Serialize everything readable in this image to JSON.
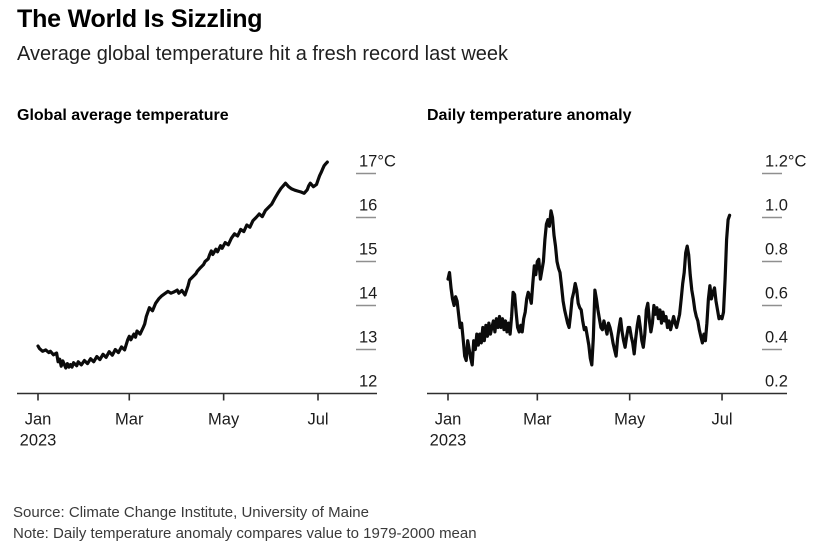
{
  "header": {
    "title": "The World Is Sizzling",
    "subtitle": "Average global temperature hit a fresh record last week"
  },
  "footer": {
    "source": "Source: Climate Change Institute, University of Maine",
    "note": "Note: Daily temperature anomaly compares value to 1979-2000 mean"
  },
  "colors": {
    "line": "#0b0b0b",
    "axis": "#2e2e2e",
    "y_tick": "#8f8f8f",
    "background": "#ffffff"
  },
  "chart_data": [
    {
      "type": "line",
      "title": "Global average temperature",
      "unit": "°C",
      "x_axis_year": "2023",
      "x_tick_days": [
        0,
        59,
        120,
        181
      ],
      "x_tick_labels": [
        "Jan",
        "Mar",
        "May",
        "Jul"
      ],
      "y_tick_values": [
        17,
        16,
        15,
        14,
        13,
        12
      ],
      "y_tick_labels": [
        "17°C",
        "16",
        "15",
        "14",
        "13",
        "12"
      ],
      "ylim": [
        12,
        17.4
      ],
      "x_range_days": [
        0,
        187
      ],
      "points": [
        [
          0,
          13.08
        ],
        [
          1,
          13.02
        ],
        [
          3,
          12.96
        ],
        [
          5,
          12.99
        ],
        [
          7,
          12.93
        ],
        [
          8,
          12.96
        ],
        [
          10,
          12.88
        ],
        [
          12,
          12.92
        ],
        [
          13,
          12.72
        ],
        [
          14,
          12.78
        ],
        [
          15,
          12.62
        ],
        [
          16,
          12.74
        ],
        [
          18,
          12.58
        ],
        [
          19,
          12.68
        ],
        [
          20,
          12.6
        ],
        [
          21,
          12.66
        ],
        [
          22,
          12.6
        ],
        [
          23,
          12.7
        ],
        [
          25,
          12.63
        ],
        [
          26,
          12.72
        ],
        [
          28,
          12.65
        ],
        [
          30,
          12.75
        ],
        [
          32,
          12.68
        ],
        [
          34,
          12.79
        ],
        [
          36,
          12.72
        ],
        [
          38,
          12.84
        ],
        [
          40,
          12.77
        ],
        [
          42,
          12.89
        ],
        [
          44,
          12.82
        ],
        [
          46,
          12.95
        ],
        [
          48,
          12.87
        ],
        [
          50,
          13.0
        ],
        [
          52,
          12.93
        ],
        [
          54,
          13.06
        ],
        [
          56,
          12.99
        ],
        [
          58,
          13.22
        ],
        [
          59,
          13.3
        ],
        [
          60,
          13.22
        ],
        [
          62,
          13.35
        ],
        [
          63,
          13.28
        ],
        [
          64,
          13.42
        ],
        [
          66,
          13.35
        ],
        [
          68,
          13.5
        ],
        [
          69,
          13.58
        ],
        [
          70,
          13.75
        ],
        [
          72,
          13.95
        ],
        [
          74,
          13.88
        ],
        [
          76,
          14.05
        ],
        [
          78,
          14.15
        ],
        [
          80,
          14.22
        ],
        [
          82,
          14.27
        ],
        [
          84,
          14.32
        ],
        [
          86,
          14.28
        ],
        [
          88,
          14.31
        ],
        [
          90,
          14.35
        ],
        [
          91,
          14.28
        ],
        [
          93,
          14.34
        ],
        [
          95,
          14.24
        ],
        [
          97,
          14.45
        ],
        [
          98,
          14.58
        ],
        [
          100,
          14.65
        ],
        [
          102,
          14.72
        ],
        [
          103,
          14.78
        ],
        [
          105,
          14.86
        ],
        [
          107,
          14.93
        ],
        [
          108,
          15.0
        ],
        [
          110,
          15.06
        ],
        [
          111,
          15.16
        ],
        [
          112,
          15.24
        ],
        [
          113,
          15.16
        ],
        [
          115,
          15.28
        ],
        [
          116,
          15.22
        ],
        [
          118,
          15.36
        ],
        [
          119,
          15.3
        ],
        [
          121,
          15.43
        ],
        [
          123,
          15.38
        ],
        [
          125,
          15.53
        ],
        [
          127,
          15.63
        ],
        [
          129,
          15.58
        ],
        [
          131,
          15.73
        ],
        [
          133,
          15.68
        ],
        [
          135,
          15.83
        ],
        [
          137,
          15.78
        ],
        [
          139,
          15.93
        ],
        [
          141,
          16.0
        ],
        [
          143,
          16.08
        ],
        [
          145,
          16.02
        ],
        [
          147,
          16.16
        ],
        [
          149,
          16.23
        ],
        [
          151,
          16.3
        ],
        [
          153,
          16.43
        ],
        [
          155,
          16.55
        ],
        [
          157,
          16.66
        ],
        [
          159,
          16.74
        ],
        [
          160,
          16.78
        ],
        [
          162,
          16.7
        ],
        [
          164,
          16.65
        ],
        [
          166,
          16.62
        ],
        [
          168,
          16.6
        ],
        [
          170,
          16.58
        ],
        [
          172,
          16.55
        ],
        [
          174,
          16.63
        ],
        [
          175,
          16.72
        ],
        [
          176,
          16.78
        ],
        [
          178,
          16.7
        ],
        [
          180,
          16.75
        ],
        [
          181,
          16.85
        ],
        [
          182,
          16.95
        ],
        [
          183,
          17.02
        ],
        [
          184,
          17.1
        ],
        [
          185,
          17.18
        ],
        [
          186,
          17.22
        ],
        [
          187,
          17.26
        ]
      ]
    },
    {
      "type": "line",
      "title": "Daily temperature anomaly",
      "unit": "°C",
      "x_axis_year": "2023",
      "x_tick_days": [
        0,
        59,
        120,
        181
      ],
      "x_tick_labels": [
        "Jan",
        "Mar",
        "May",
        "Jul"
      ],
      "y_tick_values": [
        1.2,
        1.0,
        0.8,
        0.6,
        0.4,
        0.2
      ],
      "y_tick_labels": [
        "1.2°C",
        "1.0",
        "0.8",
        "0.6",
        "0.4",
        "0.2"
      ],
      "ylim": [
        0.2,
        1.2
      ],
      "x_range_days": [
        0,
        186
      ],
      "points": [
        [
          0,
          0.72
        ],
        [
          1,
          0.75
        ],
        [
          2,
          0.68
        ],
        [
          3,
          0.63
        ],
        [
          4,
          0.6
        ],
        [
          5,
          0.64
        ],
        [
          6,
          0.62
        ],
        [
          7,
          0.56
        ],
        [
          8,
          0.5
        ],
        [
          9,
          0.52
        ],
        [
          10,
          0.45
        ],
        [
          11,
          0.37
        ],
        [
          12,
          0.35
        ],
        [
          13,
          0.44
        ],
        [
          14,
          0.4
        ],
        [
          15,
          0.36
        ],
        [
          16,
          0.33
        ],
        [
          17,
          0.44
        ],
        [
          18,
          0.4
        ],
        [
          19,
          0.47
        ],
        [
          20,
          0.42
        ],
        [
          21,
          0.47
        ],
        [
          22,
          0.43
        ],
        [
          23,
          0.5
        ],
        [
          24,
          0.44
        ],
        [
          25,
          0.51
        ],
        [
          26,
          0.46
        ],
        [
          27,
          0.52
        ],
        [
          28,
          0.47
        ],
        [
          30,
          0.53
        ],
        [
          31,
          0.48
        ],
        [
          32,
          0.54
        ],
        [
          33,
          0.5
        ],
        [
          34,
          0.55
        ],
        [
          35,
          0.5
        ],
        [
          36,
          0.54
        ],
        [
          37,
          0.49
        ],
        [
          38,
          0.53
        ],
        [
          39,
          0.48
        ],
        [
          40,
          0.52
        ],
        [
          41,
          0.47
        ],
        [
          42,
          0.55
        ],
        [
          43,
          0.66
        ],
        [
          44,
          0.65
        ],
        [
          45,
          0.57
        ],
        [
          46,
          0.5
        ],
        [
          47,
          0.48
        ],
        [
          48,
          0.51
        ],
        [
          49,
          0.48
        ],
        [
          50,
          0.54
        ],
        [
          51,
          0.57
        ],
        [
          52,
          0.63
        ],
        [
          53,
          0.66
        ],
        [
          54,
          0.64
        ],
        [
          55,
          0.61
        ],
        [
          56,
          0.7
        ],
        [
          57,
          0.78
        ],
        [
          58,
          0.74
        ],
        [
          59,
          0.8
        ],
        [
          60,
          0.81
        ],
        [
          61,
          0.72
        ],
        [
          62,
          0.76
        ],
        [
          63,
          0.8
        ],
        [
          64,
          0.9
        ],
        [
          65,
          0.97
        ],
        [
          66,
          0.99
        ],
        [
          67,
          0.96
        ],
        [
          68,
          1.03
        ],
        [
          69,
          1.0
        ],
        [
          70,
          0.92
        ],
        [
          71,
          0.87
        ],
        [
          72,
          0.8
        ],
        [
          73,
          0.77
        ],
        [
          74,
          0.75
        ],
        [
          75,
          0.69
        ],
        [
          76,
          0.62
        ],
        [
          77,
          0.58
        ],
        [
          78,
          0.55
        ],
        [
          79,
          0.52
        ],
        [
          80,
          0.5
        ],
        [
          81,
          0.56
        ],
        [
          82,
          0.63
        ],
        [
          83,
          0.66
        ],
        [
          84,
          0.7
        ],
        [
          85,
          0.67
        ],
        [
          86,
          0.61
        ],
        [
          87,
          0.59
        ],
        [
          88,
          0.58
        ],
        [
          89,
          0.53
        ],
        [
          90,
          0.49
        ],
        [
          91,
          0.5
        ],
        [
          92,
          0.46
        ],
        [
          93,
          0.42
        ],
        [
          94,
          0.36
        ],
        [
          95,
          0.33
        ],
        [
          96,
          0.45
        ],
        [
          97,
          0.67
        ],
        [
          98,
          0.63
        ],
        [
          99,
          0.58
        ],
        [
          100,
          0.54
        ],
        [
          101,
          0.5
        ],
        [
          102,
          0.49
        ],
        [
          103,
          0.53
        ],
        [
          104,
          0.5
        ],
        [
          105,
          0.47
        ],
        [
          106,
          0.52
        ],
        [
          107,
          0.5
        ],
        [
          108,
          0.47
        ],
        [
          109,
          0.43
        ],
        [
          110,
          0.4
        ],
        [
          111,
          0.37
        ],
        [
          112,
          0.45
        ],
        [
          113,
          0.5
        ],
        [
          114,
          0.54
        ],
        [
          115,
          0.48
        ],
        [
          116,
          0.44
        ],
        [
          117,
          0.41
        ],
        [
          118,
          0.46
        ],
        [
          119,
          0.5
        ],
        [
          120,
          0.5
        ],
        [
          121,
          0.46
        ],
        [
          122,
          0.43
        ],
        [
          123,
          0.38
        ],
        [
          124,
          0.45
        ],
        [
          125,
          0.51
        ],
        [
          126,
          0.55
        ],
        [
          127,
          0.5
        ],
        [
          128,
          0.44
        ],
        [
          129,
          0.41
        ],
        [
          130,
          0.47
        ],
        [
          131,
          0.58
        ],
        [
          132,
          0.61
        ],
        [
          133,
          0.53
        ],
        [
          134,
          0.48
        ],
        [
          135,
          0.52
        ],
        [
          136,
          0.6
        ],
        [
          137,
          0.56
        ],
        [
          138,
          0.59
        ],
        [
          139,
          0.54
        ],
        [
          140,
          0.58
        ],
        [
          141,
          0.52
        ],
        [
          142,
          0.57
        ],
        [
          143,
          0.53
        ],
        [
          144,
          0.55
        ],
        [
          145,
          0.5
        ],
        [
          146,
          0.53
        ],
        [
          147,
          0.49
        ],
        [
          148,
          0.52
        ],
        [
          149,
          0.55
        ],
        [
          150,
          0.52
        ],
        [
          151,
          0.5
        ],
        [
          152,
          0.53
        ],
        [
          153,
          0.56
        ],
        [
          154,
          0.63
        ],
        [
          155,
          0.7
        ],
        [
          156,
          0.75
        ],
        [
          157,
          0.84
        ],
        [
          158,
          0.87
        ],
        [
          159,
          0.83
        ],
        [
          160,
          0.74
        ],
        [
          161,
          0.67
        ],
        [
          162,
          0.63
        ],
        [
          163,
          0.58
        ],
        [
          164,
          0.55
        ],
        [
          165,
          0.53
        ],
        [
          166,
          0.49
        ],
        [
          167,
          0.46
        ],
        [
          168,
          0.43
        ],
        [
          169,
          0.47
        ],
        [
          170,
          0.44
        ],
        [
          171,
          0.52
        ],
        [
          172,
          0.63
        ],
        [
          173,
          0.69
        ],
        [
          174,
          0.63
        ],
        [
          175,
          0.66
        ],
        [
          176,
          0.68
        ],
        [
          177,
          0.62
        ],
        [
          178,
          0.58
        ],
        [
          179,
          0.54
        ],
        [
          180,
          0.55
        ],
        [
          181,
          0.54
        ],
        [
          182,
          0.57
        ],
        [
          183,
          0.72
        ],
        [
          184,
          0.9
        ],
        [
          185,
          0.99
        ],
        [
          186,
          1.01
        ]
      ]
    }
  ]
}
